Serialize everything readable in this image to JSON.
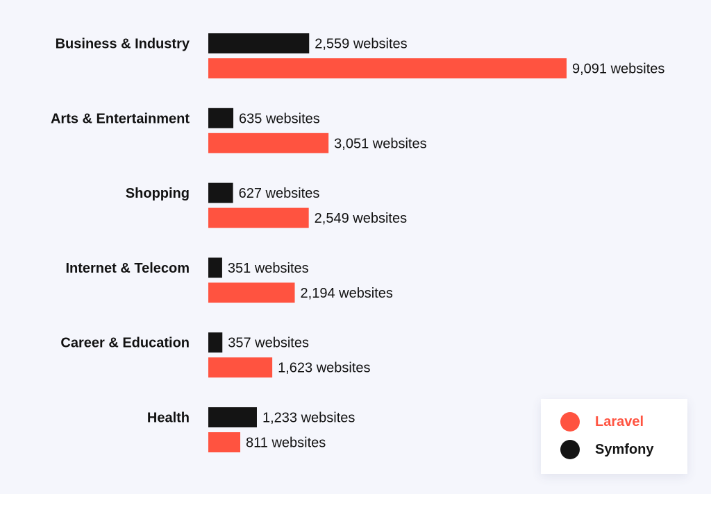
{
  "chart_data": {
    "type": "bar",
    "orientation": "horizontal",
    "categories": [
      "Business & Industry",
      "Arts & Entertainment",
      "Shopping",
      "Internet & Telecom",
      "Career & Education",
      "Health"
    ],
    "series": [
      {
        "name": "Symfony",
        "color": "#141414",
        "values": [
          2559,
          635,
          627,
          351,
          357,
          1233
        ],
        "labels": [
          "2,559 websites",
          "635 websites",
          "627 websites",
          "351 websites",
          "357 websites",
          "1,233 websites"
        ]
      },
      {
        "name": "Laravel",
        "color": "#ff5340",
        "values": [
          9091,
          3051,
          2549,
          2194,
          1623,
          811
        ],
        "labels": [
          "9,091 websites",
          "3,051 websites",
          "2,549 websites",
          "2,194 websites",
          "1,623 websites",
          "811 websites"
        ]
      }
    ],
    "title": "",
    "xlabel": "",
    "ylabel": "",
    "xlim": [
      0,
      9091
    ],
    "grid": false,
    "legend_position": "bottom-right"
  },
  "legend": {
    "items": [
      {
        "label": "Laravel",
        "color": "#ff5340"
      },
      {
        "label": "Symfony",
        "color": "#141414"
      }
    ]
  }
}
